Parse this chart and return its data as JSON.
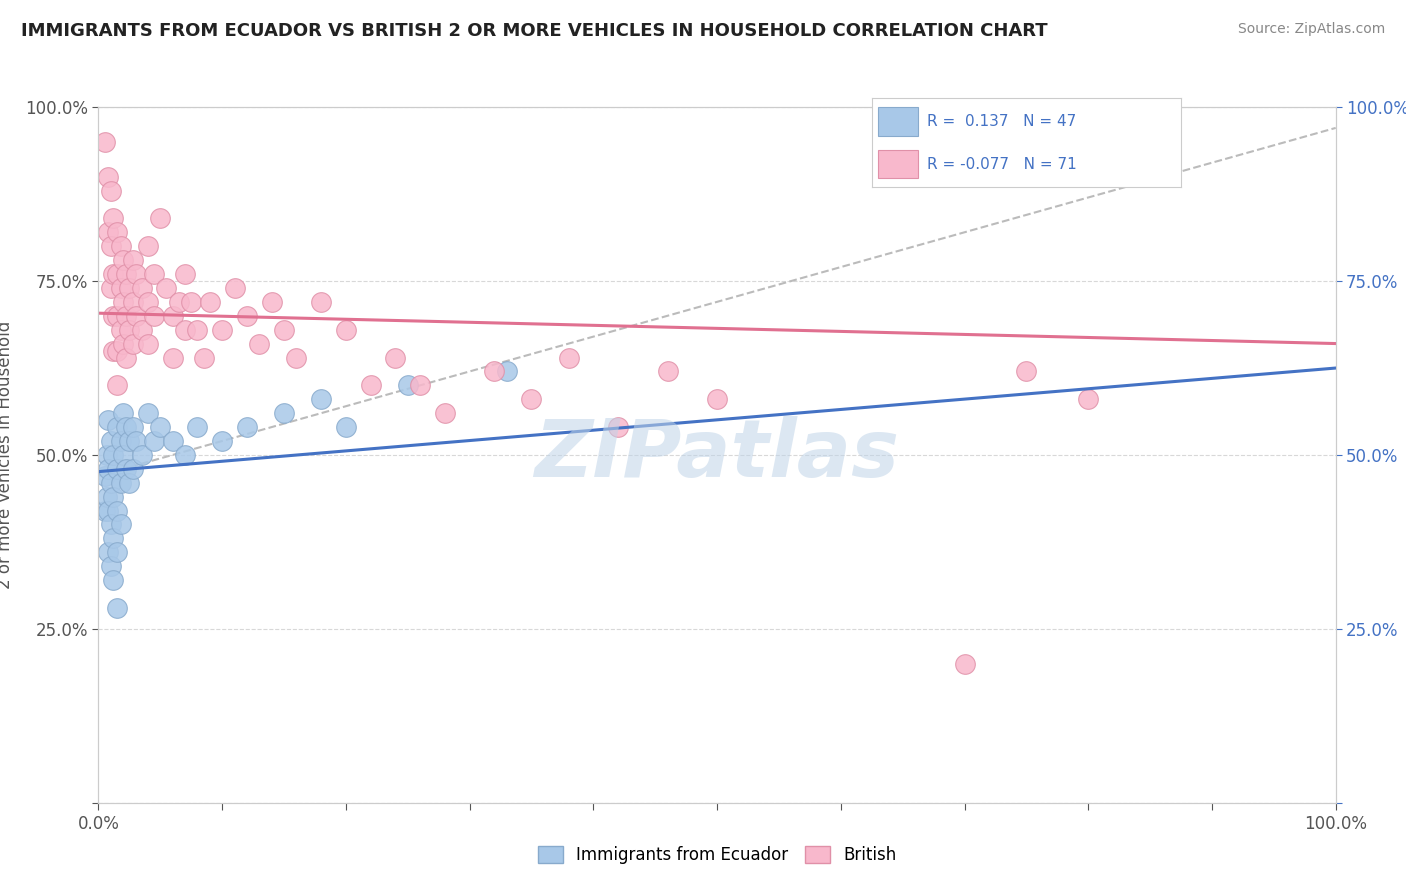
{
  "title": "IMMIGRANTS FROM ECUADOR VS BRITISH 2 OR MORE VEHICLES IN HOUSEHOLD CORRELATION CHART",
  "source": "Source: ZipAtlas.com",
  "ylabel": "2 or more Vehicles in Household",
  "xmin": 0.0,
  "xmax": 1.0,
  "ymin": 0.0,
  "ymax": 1.0,
  "r_blue": 0.137,
  "n_blue": 47,
  "r_pink": -0.077,
  "n_pink": 71,
  "blue_color": "#a8c8e8",
  "pink_color": "#f8b8cc",
  "blue_line_color": "#4472c4",
  "pink_line_color": "#e07090",
  "blue_scatter": [
    [
      0.005,
      0.47
    ],
    [
      0.005,
      0.42
    ],
    [
      0.007,
      0.5
    ],
    [
      0.007,
      0.44
    ],
    [
      0.008,
      0.55
    ],
    [
      0.008,
      0.48
    ],
    [
      0.008,
      0.42
    ],
    [
      0.008,
      0.36
    ],
    [
      0.01,
      0.52
    ],
    [
      0.01,
      0.46
    ],
    [
      0.01,
      0.4
    ],
    [
      0.01,
      0.34
    ],
    [
      0.012,
      0.5
    ],
    [
      0.012,
      0.44
    ],
    [
      0.012,
      0.38
    ],
    [
      0.012,
      0.32
    ],
    [
      0.015,
      0.54
    ],
    [
      0.015,
      0.48
    ],
    [
      0.015,
      0.42
    ],
    [
      0.015,
      0.36
    ],
    [
      0.015,
      0.28
    ],
    [
      0.018,
      0.52
    ],
    [
      0.018,
      0.46
    ],
    [
      0.018,
      0.4
    ],
    [
      0.02,
      0.56
    ],
    [
      0.02,
      0.5
    ],
    [
      0.022,
      0.54
    ],
    [
      0.022,
      0.48
    ],
    [
      0.025,
      0.52
    ],
    [
      0.025,
      0.46
    ],
    [
      0.028,
      0.54
    ],
    [
      0.028,
      0.48
    ],
    [
      0.03,
      0.52
    ],
    [
      0.035,
      0.5
    ],
    [
      0.04,
      0.56
    ],
    [
      0.045,
      0.52
    ],
    [
      0.05,
      0.54
    ],
    [
      0.06,
      0.52
    ],
    [
      0.07,
      0.5
    ],
    [
      0.08,
      0.54
    ],
    [
      0.1,
      0.52
    ],
    [
      0.12,
      0.54
    ],
    [
      0.15,
      0.56
    ],
    [
      0.18,
      0.58
    ],
    [
      0.2,
      0.54
    ],
    [
      0.25,
      0.6
    ],
    [
      0.33,
      0.62
    ]
  ],
  "pink_scatter": [
    [
      0.005,
      0.95
    ],
    [
      0.008,
      0.9
    ],
    [
      0.008,
      0.82
    ],
    [
      0.01,
      0.88
    ],
    [
      0.01,
      0.8
    ],
    [
      0.01,
      0.74
    ],
    [
      0.012,
      0.84
    ],
    [
      0.012,
      0.76
    ],
    [
      0.012,
      0.7
    ],
    [
      0.012,
      0.65
    ],
    [
      0.015,
      0.82
    ],
    [
      0.015,
      0.76
    ],
    [
      0.015,
      0.7
    ],
    [
      0.015,
      0.65
    ],
    [
      0.015,
      0.6
    ],
    [
      0.018,
      0.8
    ],
    [
      0.018,
      0.74
    ],
    [
      0.018,
      0.68
    ],
    [
      0.02,
      0.78
    ],
    [
      0.02,
      0.72
    ],
    [
      0.02,
      0.66
    ],
    [
      0.022,
      0.76
    ],
    [
      0.022,
      0.7
    ],
    [
      0.022,
      0.64
    ],
    [
      0.025,
      0.74
    ],
    [
      0.025,
      0.68
    ],
    [
      0.028,
      0.78
    ],
    [
      0.028,
      0.72
    ],
    [
      0.028,
      0.66
    ],
    [
      0.03,
      0.76
    ],
    [
      0.03,
      0.7
    ],
    [
      0.035,
      0.74
    ],
    [
      0.035,
      0.68
    ],
    [
      0.04,
      0.8
    ],
    [
      0.04,
      0.72
    ],
    [
      0.04,
      0.66
    ],
    [
      0.045,
      0.76
    ],
    [
      0.045,
      0.7
    ],
    [
      0.05,
      0.84
    ],
    [
      0.055,
      0.74
    ],
    [
      0.06,
      0.7
    ],
    [
      0.06,
      0.64
    ],
    [
      0.065,
      0.72
    ],
    [
      0.07,
      0.76
    ],
    [
      0.07,
      0.68
    ],
    [
      0.075,
      0.72
    ],
    [
      0.08,
      0.68
    ],
    [
      0.085,
      0.64
    ],
    [
      0.09,
      0.72
    ],
    [
      0.1,
      0.68
    ],
    [
      0.11,
      0.74
    ],
    [
      0.12,
      0.7
    ],
    [
      0.13,
      0.66
    ],
    [
      0.14,
      0.72
    ],
    [
      0.15,
      0.68
    ],
    [
      0.16,
      0.64
    ],
    [
      0.18,
      0.72
    ],
    [
      0.2,
      0.68
    ],
    [
      0.22,
      0.6
    ],
    [
      0.24,
      0.64
    ],
    [
      0.26,
      0.6
    ],
    [
      0.28,
      0.56
    ],
    [
      0.32,
      0.62
    ],
    [
      0.35,
      0.58
    ],
    [
      0.38,
      0.64
    ],
    [
      0.42,
      0.54
    ],
    [
      0.46,
      0.62
    ],
    [
      0.5,
      0.58
    ],
    [
      0.7,
      0.2
    ],
    [
      0.75,
      0.62
    ],
    [
      0.8,
      0.58
    ]
  ],
  "dash_line": [
    [
      0.0,
      0.47
    ],
    [
      1.0,
      0.97
    ]
  ],
  "watermark": "ZIPatlas",
  "background_color": "#ffffff",
  "grid_color": "#d8d8d8",
  "legend_label_blue": "R =  0.137   N = 47",
  "legend_label_pink": "R = -0.077   N = 71",
  "bottom_legend_blue": "Immigrants from Ecuador",
  "bottom_legend_pink": "British"
}
